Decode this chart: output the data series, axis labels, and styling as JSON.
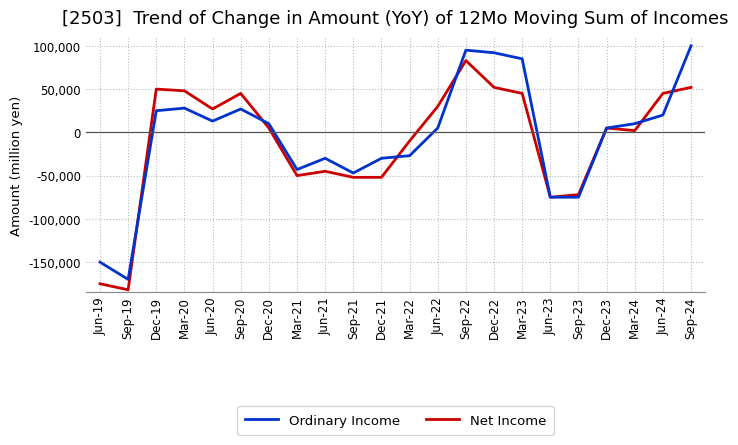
{
  "title": "[2503]  Trend of Change in Amount (YoY) of 12Mo Moving Sum of Incomes",
  "ylabel": "Amount (million yen)",
  "x_labels": [
    "Jun-19",
    "Sep-19",
    "Dec-19",
    "Mar-20",
    "Jun-20",
    "Sep-20",
    "Dec-20",
    "Mar-21",
    "Jun-21",
    "Sep-21",
    "Dec-21",
    "Mar-22",
    "Jun-22",
    "Sep-22",
    "Dec-22",
    "Mar-23",
    "Jun-23",
    "Sep-23",
    "Dec-23",
    "Mar-24",
    "Jun-24",
    "Sep-24"
  ],
  "ordinary_income": [
    -150000,
    -170000,
    25000,
    28000,
    13000,
    27000,
    10000,
    -43000,
    -30000,
    -47000,
    -30000,
    -27000,
    5000,
    95000,
    92000,
    85000,
    -75000,
    -75000,
    5000,
    10000,
    20000,
    100000
  ],
  "net_income": [
    -175000,
    -182000,
    50000,
    48000,
    27000,
    45000,
    5000,
    -50000,
    -45000,
    -52000,
    -52000,
    -10000,
    30000,
    83000,
    52000,
    45000,
    -75000,
    -72000,
    5000,
    2000,
    45000,
    52000
  ],
  "ordinary_color": "#0033cc",
  "net_color": "#cc0000",
  "ylim_min": -185000,
  "ylim_max": 110000,
  "yticks": [
    -150000,
    -100000,
    -50000,
    0,
    50000,
    100000
  ],
  "background_color": "#ffffff",
  "grid_color": "#bbbbbb",
  "title_fontsize": 13,
  "title_fontweight": "normal"
}
